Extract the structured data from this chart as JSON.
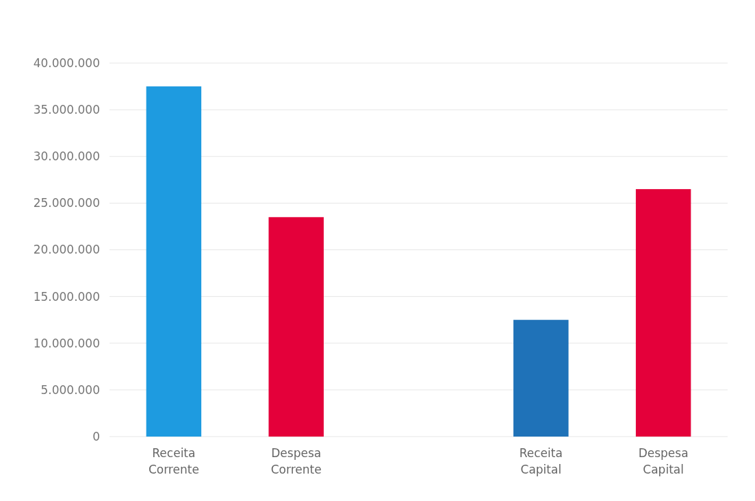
{
  "chart_data": {
    "type": "bar",
    "categories": [
      "Receita Corrente",
      "Despesa Corrente",
      null,
      "Receita Capital",
      "Despesa Capital"
    ],
    "values": [
      37500000,
      23500000,
      null,
      12500000,
      26500000
    ],
    "colors": [
      "#1e9be0",
      "#e4003a",
      null,
      "#1f72b8",
      "#e4003a"
    ],
    "ylim": [
      0,
      40000000
    ],
    "yticks": [
      {
        "value": 0,
        "label": "0"
      },
      {
        "value": 5000000,
        "label": "5.000.000"
      },
      {
        "value": 10000000,
        "label": "10.000.000"
      },
      {
        "value": 15000000,
        "label": "15.000.000"
      },
      {
        "value": 20000000,
        "label": "20.000.000"
      },
      {
        "value": 25000000,
        "label": "25.000.000"
      },
      {
        "value": 30000000,
        "label": "30.000.000"
      },
      {
        "value": 35000000,
        "label": "35.000.000"
      },
      {
        "value": 40000000,
        "label": "40.000.000"
      }
    ],
    "grid": "y"
  }
}
